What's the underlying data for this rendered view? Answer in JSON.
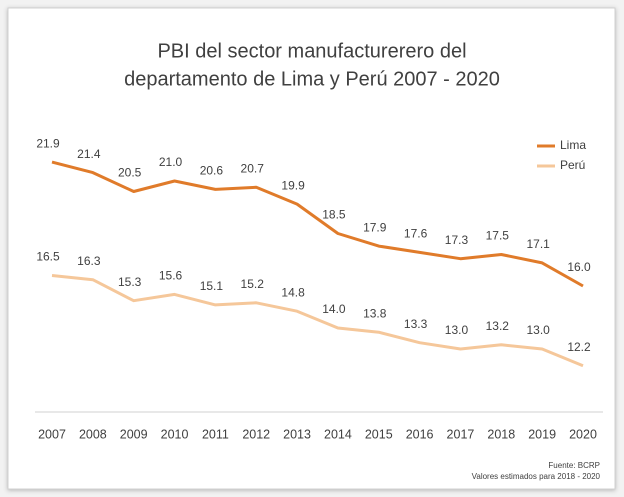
{
  "chart_data": {
    "type": "line",
    "title": [
      "PBI del sector manufacturerero del",
      "departamento de Lima y Perú 2007 - 2020"
    ],
    "categories": [
      "2007",
      "2008",
      "2009",
      "2010",
      "2011",
      "2012",
      "2013",
      "2014",
      "2015",
      "2016",
      "2017",
      "2018",
      "2019",
      "2020"
    ],
    "series": [
      {
        "name": "Lima",
        "color": "#e07b2a",
        "values": [
          21.9,
          21.4,
          20.5,
          21.0,
          20.6,
          20.7,
          19.9,
          18.5,
          17.9,
          17.6,
          17.3,
          17.5,
          17.1,
          16.0
        ],
        "value_labels": [
          "21.9",
          "21.4",
          "20.5",
          "21.0",
          "20.6",
          "20.7",
          "19.9",
          "18.5",
          "17.9",
          "17.6",
          "17.3",
          "17.5",
          "17.1",
          "16.0"
        ]
      },
      {
        "name": "Perú",
        "color": "#f5c79a",
        "values": [
          16.5,
          16.3,
          15.3,
          15.6,
          15.1,
          15.2,
          14.8,
          14.0,
          13.8,
          13.3,
          13.0,
          13.2,
          13.0,
          12.2
        ],
        "value_labels": [
          "16.5",
          "16.3",
          "15.3",
          "15.6",
          "15.1",
          "15.2",
          "14.8",
          "14.0",
          "13.8",
          "13.3",
          "13.0",
          "13.2",
          "13.0",
          "12.2"
        ]
      }
    ],
    "ylim": [
      10,
      23
    ],
    "legend": "top-right",
    "source": [
      "Fuente: BCRP",
      "Valores estimados para 2018 - 2020"
    ]
  }
}
